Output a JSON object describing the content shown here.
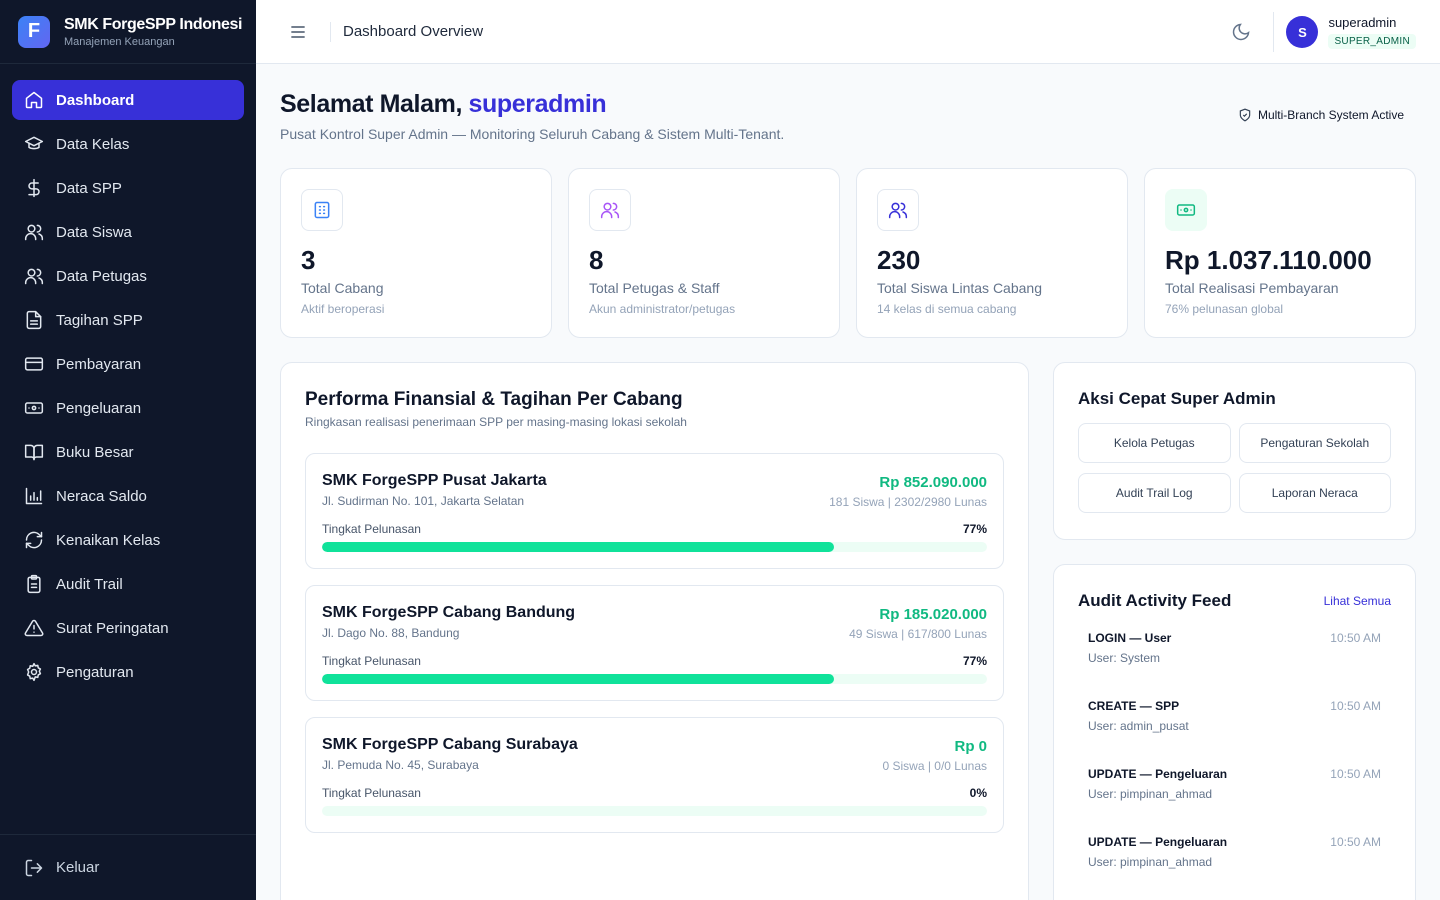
{
  "brand": {
    "name": "SMK ForgeSPP Indonesi",
    "subtitle": "Manajemen Keuangan",
    "logo_letter": "F"
  },
  "sidebar": {
    "items": [
      {
        "label": "Dashboard",
        "icon": "home-icon",
        "active": true
      },
      {
        "label": "Data Kelas",
        "icon": "graduation-cap-icon"
      },
      {
        "label": "Data SPP",
        "icon": "dollar-icon"
      },
      {
        "label": "Data Siswa",
        "icon": "users-icon"
      },
      {
        "label": "Data Petugas",
        "icon": "users-icon"
      },
      {
        "label": "Tagihan SPP",
        "icon": "file-text-icon"
      },
      {
        "label": "Pembayaran",
        "icon": "credit-card-icon"
      },
      {
        "label": "Pengeluaran",
        "icon": "banknote-icon"
      },
      {
        "label": "Buku Besar",
        "icon": "book-open-icon"
      },
      {
        "label": "Neraca Saldo",
        "icon": "bar-chart-icon"
      },
      {
        "label": "Kenaikan Kelas",
        "icon": "refresh-icon"
      },
      {
        "label": "Audit Trail",
        "icon": "clipboard-icon"
      },
      {
        "label": "Surat Peringatan",
        "icon": "alert-triangle-icon"
      },
      {
        "label": "Pengaturan",
        "icon": "gear-icon"
      }
    ],
    "logout_label": "Keluar"
  },
  "header": {
    "title": "Dashboard Overview",
    "user": {
      "name": "superadmin",
      "role": "SUPER_ADMIN",
      "initial": "S"
    }
  },
  "main": {
    "greeting_prefix": "Selamat Malam, ",
    "greeting_name": "superadmin",
    "subtitle": "Pusat Kontrol Super Admin — Monitoring Seluruh Cabang & Sistem Multi-Tenant.",
    "system_badge": "Multi-Branch System Active",
    "stats": [
      {
        "value": "3",
        "label": "Total Cabang",
        "desc": "Aktif beroperasi",
        "icon": "building-icon",
        "color": "#3b82f6"
      },
      {
        "value": "8",
        "label": "Total Petugas & Staff",
        "desc": "Akun administrator/petugas",
        "icon": "users-icon",
        "color": "#a855f7"
      },
      {
        "value": "230",
        "label": "Total Siswa Lintas Cabang",
        "desc": "14 kelas di semua cabang",
        "icon": "users-icon",
        "color": "#3730d8"
      },
      {
        "value": "Rp 1.037.110.000",
        "label": "Total Realisasi Pembayaran",
        "desc": "76% pelunasan global",
        "icon": "banknote-icon",
        "color": "#10b981"
      }
    ],
    "performance": {
      "title": "Performa Finansial & Tagihan Per Cabang",
      "subtitle": "Ringkasan realisasi penerimaan SPP per masing-masing lokasi sekolah",
      "progress_label": "Tingkat Pelunasan",
      "branches": [
        {
          "name": "SMK ForgeSPP Pusat Jakarta",
          "address": "Jl. Sudirman No. 101, Jakarta Selatan",
          "amount": "Rp 852.090.000",
          "meta": "181 Siswa | 2302/2980 Lunas",
          "percent_label": "77%",
          "percent": 77
        },
        {
          "name": "SMK ForgeSPP Cabang Bandung",
          "address": "Jl. Dago No. 88, Bandung",
          "amount": "Rp 185.020.000",
          "meta": "49 Siswa | 617/800 Lunas",
          "percent_label": "77%",
          "percent": 77
        },
        {
          "name": "SMK ForgeSPP Cabang Surabaya",
          "address": "Jl. Pemuda No. 45, Surabaya",
          "amount": "Rp 0",
          "meta": "0 Siswa | 0/0 Lunas",
          "percent_label": "0%",
          "percent": 0
        }
      ]
    },
    "quick_actions": {
      "title": "Aksi Cepat Super Admin",
      "buttons": [
        "Kelola Petugas",
        "Pengaturan Sekolah",
        "Audit Trail Log",
        "Laporan Neraca"
      ]
    },
    "audit": {
      "title": "Audit Activity Feed",
      "link": "Lihat Semua",
      "items": [
        {
          "action": "LOGIN — User",
          "user": "User: System",
          "time": "10:50 AM"
        },
        {
          "action": "CREATE — SPP",
          "user": "User: admin_pusat",
          "time": "10:50 AM"
        },
        {
          "action": "UPDATE — Pengeluaran",
          "user": "User: pimpinan_ahmad",
          "time": "10:50 AM"
        },
        {
          "action": "UPDATE — Pengeluaran",
          "user": "User: pimpinan_ahmad",
          "time": "10:50 AM"
        }
      ]
    }
  },
  "colors": {
    "accent": "#3730d8",
    "success": "#10b981",
    "sidebar_bg": "#0f172a"
  }
}
